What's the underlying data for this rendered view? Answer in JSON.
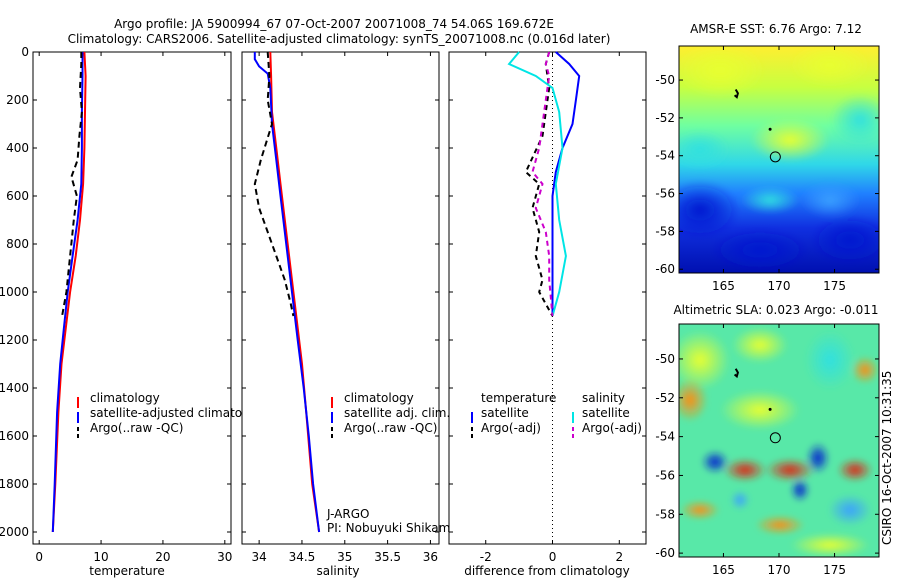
{
  "header": {
    "title_line1": "Argo profile: JA 5900994_67 07-Oct-2007 20071008_74 54.06S 169.672E",
    "title_line2": "Climatology: CARS2006. Satellite-adjusted climatology: synTS_20071008.nc (0.016d later)"
  },
  "credit": "CSIRO 16-Oct-2007 10:31:35",
  "colors": {
    "clim": "#ff0000",
    "sat": "#0000ff",
    "argo": "#000000",
    "cyan": "#00e5e5",
    "magenta": "#cc00cc"
  },
  "chart_data": [
    {
      "type": "line",
      "name": "temperature-profile",
      "xlabel": "temperature",
      "xlim": [
        -1,
        31
      ],
      "ylim": [
        0,
        2050
      ],
      "xticks": [
        "0",
        "10",
        "20",
        "30"
      ],
      "xtick_values": [
        0,
        10,
        20,
        30
      ],
      "yticks": [
        "0",
        "200",
        "400",
        "600",
        "800",
        "1000",
        "1200",
        "1400",
        "1600",
        "1800",
        "2000"
      ],
      "ytick_values": [
        0,
        200,
        400,
        600,
        800,
        1000,
        1200,
        1400,
        1600,
        1800,
        2000
      ],
      "legend": [
        "climatology",
        "satellite-adjusted climatology",
        "Argo(..raw -QC)"
      ],
      "series": [
        {
          "name": "climatology",
          "color": "#ff0000",
          "dash": "",
          "points": [
            [
              7.3,
              0
            ],
            [
              7.5,
              100
            ],
            [
              7.4,
              250
            ],
            [
              7.3,
              400
            ],
            [
              7.1,
              550
            ],
            [
              6.6,
              700
            ],
            [
              5.9,
              850
            ],
            [
              5.0,
              1000
            ],
            [
              4.3,
              1150
            ],
            [
              3.6,
              1300
            ],
            [
              3.1,
              1500
            ],
            [
              2.6,
              1800
            ],
            [
              2.2,
              2000
            ]
          ]
        },
        {
          "name": "satellite-adjusted climatology",
          "color": "#0000ff",
          "dash": "",
          "points": [
            [
              7.0,
              0
            ],
            [
              7.0,
              100
            ],
            [
              6.9,
              250
            ],
            [
              6.9,
              400
            ],
            [
              6.8,
              550
            ],
            [
              6.2,
              700
            ],
            [
              5.4,
              850
            ],
            [
              4.6,
              1000
            ],
            [
              4.0,
              1150
            ],
            [
              3.4,
              1300
            ],
            [
              2.9,
              1500
            ],
            [
              2.5,
              1800
            ],
            [
              2.2,
              2000
            ]
          ]
        },
        {
          "name": "Argo(..raw -QC)",
          "color": "#000000",
          "dash": "6,4",
          "points": [
            [
              6.8,
              0
            ],
            [
              6.8,
              50
            ],
            [
              6.6,
              150
            ],
            [
              6.9,
              250
            ],
            [
              6.5,
              350
            ],
            [
              6.2,
              450
            ],
            [
              5.2,
              520
            ],
            [
              6.1,
              600
            ],
            [
              5.6,
              700
            ],
            [
              5.0,
              850
            ],
            [
              4.4,
              1000
            ],
            [
              3.7,
              1100
            ]
          ]
        }
      ]
    },
    {
      "type": "line",
      "name": "salinity-profile",
      "xlabel": "salinity",
      "xlim": [
        33.8,
        36.1
      ],
      "ylim": [
        0,
        2050
      ],
      "xticks": [
        "34",
        "34.5",
        "35",
        "35.5",
        "36"
      ],
      "xtick_values": [
        34,
        34.5,
        35,
        35.5,
        36
      ],
      "legend": [
        "climatology",
        "satellite adj. clim.",
        "Argo(..raw -QC)"
      ],
      "annotation": [
        "J-ARGO",
        "PI: Nobuyuki Shikama"
      ],
      "series": [
        {
          "name": "climatology",
          "color": "#ff0000",
          "dash": "",
          "points": [
            [
              34.13,
              0
            ],
            [
              34.14,
              100
            ],
            [
              34.15,
              250
            ],
            [
              34.2,
              400
            ],
            [
              34.25,
              550
            ],
            [
              34.3,
              700
            ],
            [
              34.35,
              850
            ],
            [
              34.4,
              1000
            ],
            [
              34.45,
              1150
            ],
            [
              34.5,
              1300
            ],
            [
              34.55,
              1500
            ],
            [
              34.62,
              1800
            ],
            [
              34.7,
              2000
            ]
          ]
        },
        {
          "name": "satellite adj. clim.",
          "color": "#0000ff",
          "dash": "",
          "points": [
            [
              33.95,
              0
            ],
            [
              33.95,
              30
            ],
            [
              34.0,
              60
            ],
            [
              34.1,
              90
            ],
            [
              34.13,
              150
            ],
            [
              34.15,
              300
            ],
            [
              34.2,
              450
            ],
            [
              34.25,
              600
            ],
            [
              34.3,
              750
            ],
            [
              34.35,
              900
            ],
            [
              34.4,
              1050
            ],
            [
              34.45,
              1200
            ],
            [
              34.52,
              1400
            ],
            [
              34.58,
              1600
            ],
            [
              34.63,
              1800
            ],
            [
              34.7,
              2000
            ]
          ]
        },
        {
          "name": "Argo(..raw -QC)",
          "color": "#000000",
          "dash": "6,4",
          "points": [
            [
              34.1,
              0
            ],
            [
              34.12,
              100
            ],
            [
              34.1,
              200
            ],
            [
              34.15,
              300
            ],
            [
              34.02,
              450
            ],
            [
              33.95,
              550
            ],
            [
              34.0,
              650
            ],
            [
              34.1,
              750
            ],
            [
              34.2,
              850
            ],
            [
              34.3,
              950
            ],
            [
              34.37,
              1050
            ],
            [
              34.4,
              1100
            ]
          ]
        }
      ]
    },
    {
      "type": "line",
      "name": "difference-profile",
      "xlabel": "difference from climatology",
      "xlim": [
        -3.1,
        2.8
      ],
      "ylim": [
        0,
        2050
      ],
      "xticks": [
        "-2",
        "0",
        "2"
      ],
      "xtick_values": [
        -2,
        0,
        2
      ],
      "legend_left_title": "temperature",
      "legend_right_title": "salinity",
      "legend_left": [
        "satellite",
        "Argo(-adj)"
      ],
      "legend_right": [
        "satellite",
        "Argo(-adj)"
      ],
      "series": [
        {
          "name": "temperature satellite",
          "color": "#0000ff",
          "dash": "",
          "points": [
            [
              0.1,
              0
            ],
            [
              0.5,
              50
            ],
            [
              0.8,
              100
            ],
            [
              0.7,
              200
            ],
            [
              0.6,
              300
            ],
            [
              0.3,
              400
            ],
            [
              0.1,
              500
            ],
            [
              0,
              600
            ],
            [
              0,
              800
            ],
            [
              0,
              1000
            ],
            [
              0,
              1100
            ]
          ]
        },
        {
          "name": "salinity satellite",
          "color": "#00e5e5",
          "dash": "",
          "points": [
            [
              -1.0,
              0
            ],
            [
              -1.3,
              50
            ],
            [
              -0.5,
              100
            ],
            [
              0,
              150
            ],
            [
              0.2,
              250
            ],
            [
              0.3,
              400
            ],
            [
              0.1,
              550
            ],
            [
              0.2,
              700
            ],
            [
              0.4,
              850
            ],
            [
              0.2,
              1000
            ],
            [
              0,
              1100
            ]
          ]
        },
        {
          "name": "temperature Argo(-adj)",
          "color": "#000000",
          "dash": "5,4",
          "points": [
            [
              -0.1,
              0
            ],
            [
              -0.2,
              50
            ],
            [
              -0.1,
              150
            ],
            [
              -0.2,
              250
            ],
            [
              -0.3,
              350
            ],
            [
              -0.8,
              500
            ],
            [
              -0.4,
              550
            ],
            [
              -0.6,
              650
            ],
            [
              -0.4,
              750
            ],
            [
              -0.5,
              850
            ],
            [
              -0.3,
              950
            ],
            [
              -0.4,
              1000
            ],
            [
              -0.2,
              1050
            ],
            [
              0,
              1100
            ]
          ]
        },
        {
          "name": "salinity Argo(-adj)",
          "color": "#cc00cc",
          "dash": "5,4",
          "points": [
            [
              -0.1,
              0
            ],
            [
              -0.2,
              50
            ],
            [
              -0.1,
              100
            ],
            [
              -0.2,
              200
            ],
            [
              -0.3,
              300
            ],
            [
              -0.4,
              400
            ],
            [
              -0.6,
              500
            ],
            [
              -0.3,
              550
            ],
            [
              -0.5,
              650
            ],
            [
              -0.2,
              750
            ],
            [
              -0.1,
              850
            ],
            [
              -0.1,
              950
            ],
            [
              0,
              1100
            ]
          ]
        }
      ]
    },
    {
      "type": "heatmap",
      "name": "amsre-sst-map",
      "title": "AMSR-E SST: 6.76 Argo: 7.12",
      "xlim": [
        161,
        179
      ],
      "ylim": [
        -60.2,
        -48.2
      ],
      "xticks": [
        "165",
        "170",
        "175"
      ],
      "xtick_values": [
        165,
        170,
        175
      ],
      "yticks": [
        "-50",
        "-52",
        "-54",
        "-56",
        "-58",
        "-60"
      ],
      "ytick_values": [
        -50,
        -52,
        -54,
        -56,
        -58,
        -60
      ],
      "float_track": [
        [
          166.1,
          -50.5
        ],
        [
          166.3,
          -50.7
        ],
        [
          166.2,
          -50.9
        ],
        [
          166.0,
          -50.8
        ]
      ],
      "markers": [
        [
          169.2,
          -52.6
        ]
      ],
      "argo_position": [
        169.67,
        -54.06
      ]
    },
    {
      "type": "heatmap",
      "name": "altimetric-sla-map",
      "title": "Altimetric SLA: 0.023 Argo: -0.011",
      "xlim": [
        161,
        179
      ],
      "ylim": [
        -60.2,
        -48.2
      ],
      "xticks": [
        "165",
        "170",
        "175"
      ],
      "xtick_values": [
        165,
        170,
        175
      ],
      "yticks": [
        "-50",
        "-52",
        "-54",
        "-56",
        "-58",
        "-60"
      ],
      "ytick_values": [
        -50,
        -52,
        -54,
        -56,
        -58,
        -60
      ],
      "float_track": [
        [
          166.1,
          -50.5
        ],
        [
          166.3,
          -50.7
        ],
        [
          166.2,
          -50.9
        ],
        [
          166.0,
          -50.8
        ]
      ],
      "markers": [
        [
          169.2,
          -52.6
        ]
      ],
      "argo_position": [
        169.67,
        -54.06
      ]
    }
  ]
}
